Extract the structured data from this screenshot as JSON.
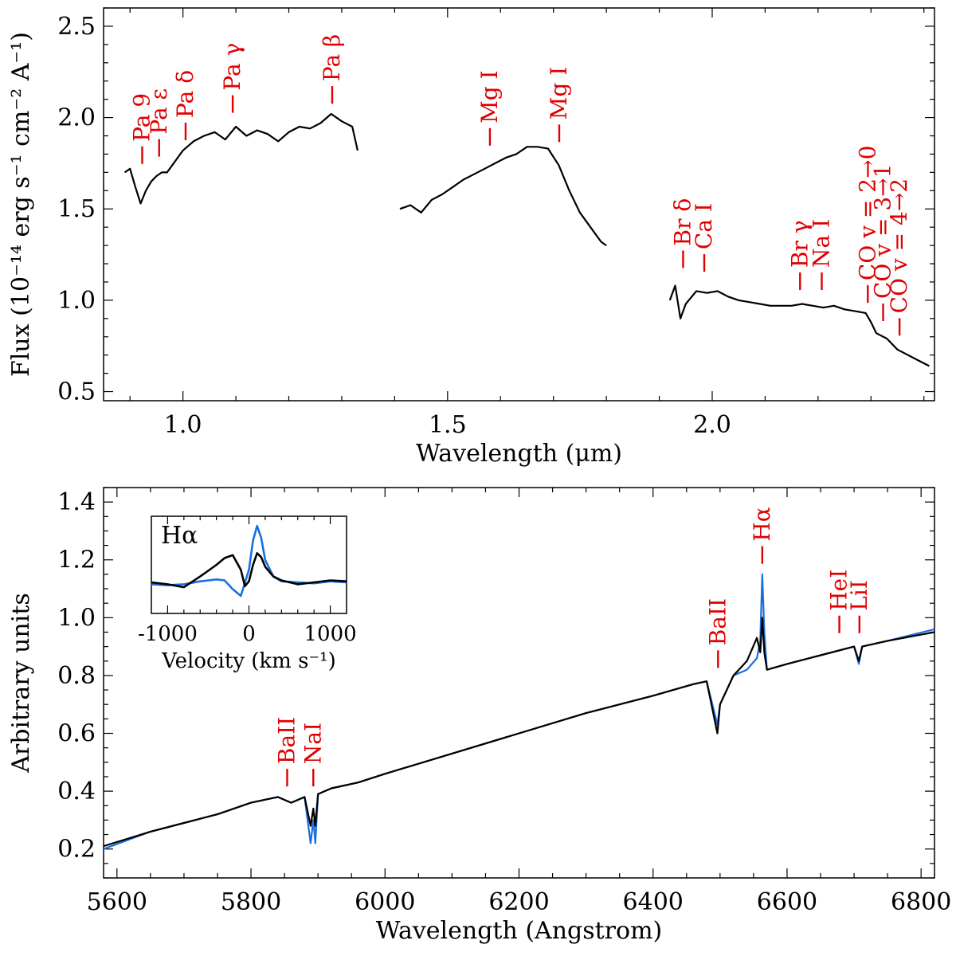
{
  "chart_data": [
    {
      "type": "line",
      "xlabel": "Wavelength (μm)",
      "ylabel": "Flux (10⁻¹⁴ erg s⁻¹ cm⁻² A⁻¹)",
      "xlim": [
        0.85,
        2.42
      ],
      "ylim": [
        0.45,
        2.6
      ],
      "xticks": [
        "1.0",
        "1.5",
        "2.0"
      ],
      "xtick_values": [
        1.0,
        1.5,
        2.0
      ],
      "yticks": [
        "0.5",
        "1.0",
        "1.5",
        "2.0",
        "2.5"
      ],
      "ytick_values": [
        0.5,
        1.0,
        1.5,
        2.0,
        2.5
      ],
      "series": [
        {
          "color": "#000000",
          "x": [
            0.89,
            0.9,
            0.91,
            0.92,
            0.93,
            0.94,
            0.95,
            0.96,
            0.97,
            0.98,
            0.99,
            1.0,
            1.02,
            1.04,
            1.06,
            1.08,
            1.1,
            1.12,
            1.14,
            1.16,
            1.18,
            1.2,
            1.22,
            1.24,
            1.26,
            1.28,
            1.3,
            1.32,
            1.33
          ],
          "y": [
            1.7,
            1.72,
            1.62,
            1.53,
            1.6,
            1.65,
            1.68,
            1.7,
            1.7,
            1.74,
            1.78,
            1.82,
            1.87,
            1.9,
            1.92,
            1.88,
            1.95,
            1.9,
            1.93,
            1.91,
            1.87,
            1.92,
            1.95,
            1.94,
            1.97,
            2.02,
            1.98,
            1.95,
            1.82
          ]
        },
        {
          "color": "#000000",
          "x": [
            1.41,
            1.43,
            1.45,
            1.47,
            1.49,
            1.51,
            1.53,
            1.55,
            1.57,
            1.59,
            1.61,
            1.63,
            1.65,
            1.67,
            1.69,
            1.71,
            1.73,
            1.75,
            1.77,
            1.79,
            1.8
          ],
          "y": [
            1.5,
            1.52,
            1.48,
            1.55,
            1.58,
            1.62,
            1.66,
            1.69,
            1.72,
            1.75,
            1.78,
            1.8,
            1.84,
            1.84,
            1.83,
            1.74,
            1.6,
            1.48,
            1.4,
            1.32,
            1.3
          ]
        },
        {
          "color": "#000000",
          "x": [
            1.92,
            1.93,
            1.94,
            1.95,
            1.97,
            1.99,
            2.01,
            2.03,
            2.05,
            2.07,
            2.09,
            2.11,
            2.13,
            2.15,
            2.17,
            2.19,
            2.21,
            2.23,
            2.25,
            2.27,
            2.29,
            2.3,
            2.31,
            2.33,
            2.35,
            2.37,
            2.39,
            2.41
          ],
          "y": [
            1.0,
            1.08,
            0.9,
            0.98,
            1.05,
            1.04,
            1.05,
            1.02,
            1.0,
            0.99,
            0.98,
            0.97,
            0.97,
            0.97,
            0.98,
            0.97,
            0.96,
            0.97,
            0.95,
            0.94,
            0.93,
            0.88,
            0.82,
            0.79,
            0.73,
            0.7,
            0.67,
            0.64
          ]
        }
      ],
      "annotations": [
        {
          "label": "Pa 9",
          "x": 0.923,
          "y_tick": 1.72
        },
        {
          "label": "Pa ε",
          "x": 0.955,
          "y_tick": 1.76
        },
        {
          "label": "Pa δ",
          "x": 1.005,
          "y_tick": 1.85
        },
        {
          "label": "Pa γ",
          "x": 1.094,
          "y_tick": 2.0
        },
        {
          "label": "Pa β",
          "x": 1.282,
          "y_tick": 2.05
        },
        {
          "label": "Mg I",
          "x": 1.58,
          "y_tick": 1.82
        },
        {
          "label": "Mg I",
          "x": 1.711,
          "y_tick": 1.84
        },
        {
          "label": "Br δ",
          "x": 1.945,
          "y_tick": 1.15
        },
        {
          "label": "Ca I",
          "x": 1.985,
          "y_tick": 1.13
        },
        {
          "label": "Br γ",
          "x": 2.166,
          "y_tick": 1.03
        },
        {
          "label": "Na I",
          "x": 2.207,
          "y_tick": 1.03
        },
        {
          "label": "CO v = 2→0",
          "x": 2.294,
          "y_tick": 0.96
        },
        {
          "label": "CO v = 3→1",
          "x": 2.323,
          "y_tick": 0.86
        },
        {
          "label": "CO v = 4→2",
          "x": 2.354,
          "y_tick": 0.78
        }
      ]
    },
    {
      "type": "line",
      "xlabel": "Wavelength (Angstrom)",
      "ylabel": "Arbitrary units",
      "xlim": [
        5580,
        6820
      ],
      "ylim": [
        0.1,
        1.45
      ],
      "xticks": [
        "5600",
        "5800",
        "6000",
        "6200",
        "6400",
        "6600",
        "6800"
      ],
      "xtick_values": [
        5600,
        5800,
        6000,
        6200,
        6400,
        6600,
        6800
      ],
      "yticks": [
        "0.2",
        "0.4",
        "0.6",
        "0.8",
        "1.0",
        "1.2",
        "1.4"
      ],
      "ytick_values": [
        0.2,
        0.4,
        0.6,
        0.8,
        1.0,
        1.2,
        1.4
      ],
      "series": [
        {
          "color": "#1a6fdf",
          "x": [
            5580,
            5650,
            5700,
            5750,
            5800,
            5840,
            5860,
            5880,
            5889,
            5893,
            5896,
            5900,
            5920,
            5960,
            6000,
            6100,
            6200,
            6300,
            6400,
            6460,
            6480,
            6496,
            6500,
            6520,
            6540,
            6555,
            6560,
            6563,
            6566,
            6570,
            6600,
            6650,
            6700,
            6707,
            6712,
            6750,
            6820
          ],
          "y": [
            0.2,
            0.26,
            0.29,
            0.32,
            0.36,
            0.38,
            0.36,
            0.38,
            0.22,
            0.3,
            0.22,
            0.39,
            0.41,
            0.43,
            0.46,
            0.53,
            0.6,
            0.67,
            0.73,
            0.77,
            0.78,
            0.63,
            0.7,
            0.8,
            0.82,
            0.86,
            0.92,
            1.15,
            0.95,
            0.82,
            0.84,
            0.87,
            0.9,
            0.84,
            0.9,
            0.92,
            0.96
          ]
        },
        {
          "color": "#000000",
          "x": [
            5580,
            5650,
            5700,
            5750,
            5800,
            5840,
            5860,
            5880,
            5889,
            5893,
            5896,
            5900,
            5920,
            5960,
            6000,
            6100,
            6200,
            6300,
            6400,
            6460,
            6480,
            6496,
            6500,
            6520,
            6540,
            6555,
            6560,
            6563,
            6566,
            6570,
            6600,
            6650,
            6700,
            6707,
            6712,
            6750,
            6820
          ],
          "y": [
            0.21,
            0.26,
            0.29,
            0.32,
            0.36,
            0.38,
            0.36,
            0.38,
            0.28,
            0.34,
            0.28,
            0.39,
            0.41,
            0.43,
            0.46,
            0.53,
            0.6,
            0.67,
            0.73,
            0.77,
            0.78,
            0.6,
            0.7,
            0.8,
            0.85,
            0.93,
            0.88,
            1.0,
            0.88,
            0.82,
            0.84,
            0.87,
            0.9,
            0.85,
            0.9,
            0.92,
            0.95
          ]
        }
      ],
      "annotations": [
        {
          "label": "BaII",
          "x": 5854,
          "y_tick": 0.4
        },
        {
          "label": "NaI",
          "x": 5893,
          "y_tick": 0.4
        },
        {
          "label": "BaII",
          "x": 6497,
          "y_tick": 0.81
        },
        {
          "label": "Hα",
          "x": 6563,
          "y_tick": 1.17
        },
        {
          "label": "HeI",
          "x": 6678,
          "y_tick": 0.93
        },
        {
          "label": "LiI",
          "x": 6708,
          "y_tick": 0.93
        }
      ],
      "inset": {
        "label": "Hα",
        "xlabel": "Velocity (km s⁻¹)",
        "xlim": [
          -1200,
          1200
        ],
        "ylim": [
          0.0,
          1.0
        ],
        "xticks": [
          "-1000",
          "0",
          "1000"
        ],
        "xtick_values": [
          -1000,
          0,
          1000
        ],
        "series": [
          {
            "color": "#1a6fdf",
            "x": [
              -1200,
              -1000,
              -800,
              -600,
              -400,
              -300,
              -200,
              -100,
              0,
              50,
              100,
              150,
              200,
              300,
              400,
              600,
              800,
              1000,
              1200
            ],
            "y": [
              0.3,
              0.29,
              0.3,
              0.33,
              0.35,
              0.34,
              0.25,
              0.18,
              0.45,
              0.75,
              0.9,
              0.78,
              0.55,
              0.38,
              0.33,
              0.32,
              0.31,
              0.33,
              0.32
            ]
          },
          {
            "color": "#000000",
            "x": [
              -1200,
              -1000,
              -800,
              -600,
              -400,
              -300,
              -200,
              -100,
              -50,
              0,
              50,
              100,
              150,
              200,
              300,
              400,
              600,
              800,
              1000,
              1200
            ],
            "y": [
              0.32,
              0.3,
              0.27,
              0.38,
              0.5,
              0.57,
              0.6,
              0.45,
              0.28,
              0.33,
              0.5,
              0.62,
              0.58,
              0.48,
              0.38,
              0.34,
              0.3,
              0.32,
              0.34,
              0.33
            ]
          }
        ]
      }
    }
  ]
}
